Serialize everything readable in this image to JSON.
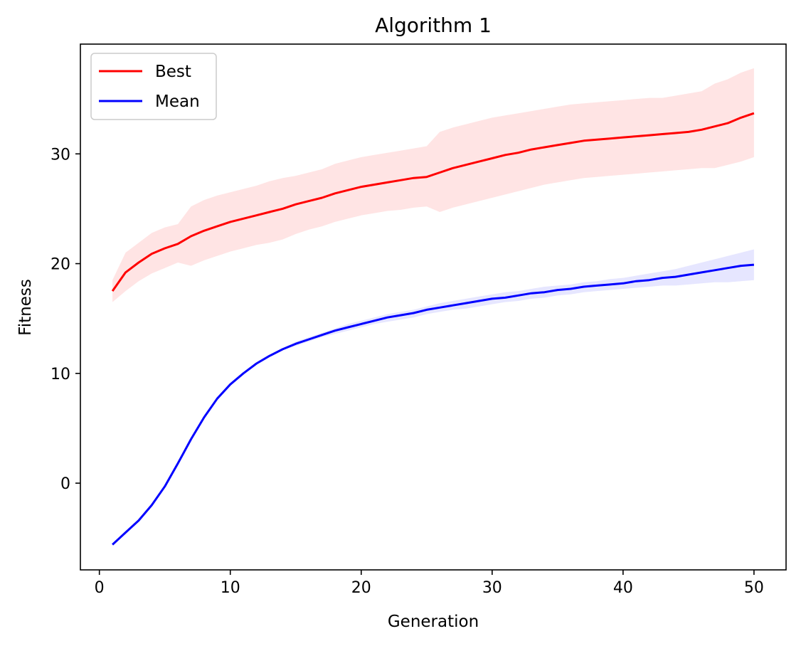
{
  "chart_data": {
    "type": "line",
    "title": "Algorithm 1",
    "xlabel": "Generation",
    "ylabel": "Fitness",
    "xlim": [
      -1.45,
      52.45
    ],
    "ylim": [
      -7.9,
      40.0
    ],
    "x_ticks": [
      0,
      10,
      20,
      30,
      40,
      50
    ],
    "y_ticks": [
      0,
      10,
      20,
      30
    ],
    "grid": false,
    "legend_position": "top-left",
    "x": [
      1,
      2,
      3,
      4,
      5,
      6,
      7,
      8,
      9,
      10,
      11,
      12,
      13,
      14,
      15,
      16,
      17,
      18,
      19,
      20,
      21,
      22,
      23,
      24,
      25,
      26,
      27,
      28,
      29,
      30,
      31,
      32,
      33,
      34,
      35,
      36,
      37,
      38,
      39,
      40,
      41,
      42,
      43,
      44,
      45,
      46,
      47,
      48,
      49,
      50
    ],
    "series": [
      {
        "name": "Best",
        "color": "#ff0000",
        "band_color": "#ffe4e4",
        "values": [
          17.5,
          19.2,
          20.1,
          20.9,
          21.4,
          21.8,
          22.5,
          23.0,
          23.4,
          23.8,
          24.1,
          24.4,
          24.7,
          25.0,
          25.4,
          25.7,
          26.0,
          26.4,
          26.7,
          27.0,
          27.2,
          27.4,
          27.6,
          27.8,
          27.9,
          28.3,
          28.7,
          29.0,
          29.3,
          29.6,
          29.9,
          30.1,
          30.4,
          30.6,
          30.8,
          31.0,
          31.2,
          31.3,
          31.4,
          31.5,
          31.6,
          31.7,
          31.8,
          31.9,
          32.0,
          32.2,
          32.5,
          32.8,
          33.3,
          33.7
        ],
        "upper": [
          18.5,
          21.0,
          21.9,
          22.8,
          23.3,
          23.6,
          25.2,
          25.8,
          26.2,
          26.5,
          26.8,
          27.1,
          27.5,
          27.8,
          28.0,
          28.3,
          28.6,
          29.1,
          29.4,
          29.7,
          29.9,
          30.1,
          30.3,
          30.5,
          30.7,
          32.0,
          32.4,
          32.7,
          33.0,
          33.3,
          33.5,
          33.7,
          33.9,
          34.1,
          34.3,
          34.5,
          34.6,
          34.7,
          34.8,
          34.9,
          35.0,
          35.1,
          35.1,
          35.3,
          35.5,
          35.7,
          36.4,
          36.8,
          37.4,
          37.8
        ],
        "lower": [
          16.5,
          17.5,
          18.4,
          19.1,
          19.6,
          20.1,
          19.8,
          20.3,
          20.7,
          21.1,
          21.4,
          21.7,
          21.9,
          22.2,
          22.7,
          23.1,
          23.4,
          23.8,
          24.1,
          24.4,
          24.6,
          24.8,
          24.9,
          25.1,
          25.2,
          24.7,
          25.1,
          25.4,
          25.7,
          26.0,
          26.3,
          26.6,
          26.9,
          27.2,
          27.4,
          27.6,
          27.8,
          27.9,
          28.0,
          28.1,
          28.2,
          28.3,
          28.4,
          28.5,
          28.6,
          28.7,
          28.7,
          29.0,
          29.3,
          29.7
        ]
      },
      {
        "name": "Mean",
        "color": "#0000ff",
        "band_color": "#e6e6ff",
        "values": [
          -5.6,
          -4.5,
          -3.4,
          -2.0,
          -0.3,
          1.8,
          4.0,
          6.0,
          7.7,
          9.0,
          10.0,
          10.9,
          11.6,
          12.2,
          12.7,
          13.1,
          13.5,
          13.9,
          14.2,
          14.5,
          14.8,
          15.1,
          15.3,
          15.5,
          15.8,
          16.0,
          16.2,
          16.4,
          16.6,
          16.8,
          16.9,
          17.1,
          17.3,
          17.4,
          17.6,
          17.7,
          17.9,
          18.0,
          18.1,
          18.2,
          18.4,
          18.5,
          18.7,
          18.8,
          19.0,
          19.2,
          19.4,
          19.6,
          19.8,
          19.9
        ],
        "upper": [
          -5.5,
          -4.4,
          -3.3,
          -1.9,
          -0.2,
          1.9,
          4.1,
          6.1,
          7.8,
          9.1,
          10.1,
          11.0,
          11.7,
          12.3,
          12.9,
          13.3,
          13.7,
          14.1,
          14.5,
          14.8,
          15.1,
          15.4,
          15.6,
          15.8,
          16.1,
          16.4,
          16.6,
          16.8,
          17.0,
          17.2,
          17.4,
          17.5,
          17.7,
          17.9,
          18.0,
          18.1,
          18.3,
          18.4,
          18.6,
          18.7,
          18.9,
          19.1,
          19.3,
          19.5,
          19.8,
          20.1,
          20.4,
          20.7,
          21.0,
          21.3
        ],
        "lower": [
          -5.7,
          -4.6,
          -3.5,
          -2.1,
          -0.4,
          1.7,
          3.9,
          5.9,
          7.6,
          8.9,
          9.9,
          10.8,
          11.5,
          12.1,
          12.5,
          12.9,
          13.3,
          13.6,
          13.9,
          14.2,
          14.5,
          14.7,
          14.9,
          15.1,
          15.4,
          15.6,
          15.8,
          15.9,
          16.1,
          16.3,
          16.5,
          16.6,
          16.8,
          16.9,
          17.1,
          17.2,
          17.4,
          17.5,
          17.6,
          17.7,
          17.8,
          17.9,
          18.0,
          18.0,
          18.1,
          18.2,
          18.3,
          18.3,
          18.4,
          18.5
        ]
      }
    ]
  }
}
